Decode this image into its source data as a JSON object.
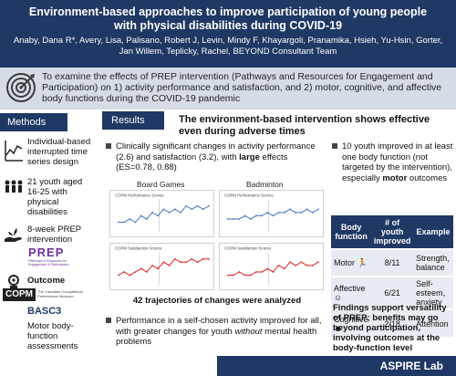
{
  "header": {
    "title": "Environment-based approaches to improve participation of young people with physical disabilities during COVID-19",
    "authors": "Anaby, Dana R*, Avery, Lisa, Palisano, Robert J, Levin, Mindy F, Khayargoli, Pranamika, Hsieh, Yu-Hsin, Gorter, Jan Willem, Teplicky, Rachel, BEYOND Consultant Team"
  },
  "objective": {
    "text": "To examine the effects of PREP intervention (Pathways and Resources for Engagement and Participation) on 1) activity performance and satisfaction, and 2) motor, cognitive, and affective body functions during the COVID-19 pandemic",
    "icon": "target-icon"
  },
  "methods": {
    "tab_label": "Methods",
    "items": [
      {
        "icon": "line-chart-icon",
        "text": "Individual-based interrupted time series design"
      },
      {
        "icon": "people-group-icon",
        "text": "21 youth aged 16-25 with physical disabilities"
      },
      {
        "icon": "hand-plant-icon",
        "text": "8-week PREP intervention"
      },
      {
        "icon": "trophy-icon",
        "text": "Outcome"
      }
    ],
    "prep_logo": {
      "word": "PREP",
      "tagline": "Pathways & Resources for Engagement & Participation"
    },
    "copm_logo": {
      "word": "COPM",
      "tagline": "The Canadian Occupational Performance Measure"
    },
    "basc_logo": {
      "word": "BASC3"
    },
    "motor_text": "Motor body-function assessments"
  },
  "results": {
    "tab_label": "Results",
    "headline": "The environment-based intervention shows effective even during adverse times",
    "bullet1_pre": "Clinically significant changes in activity performance (2.6) and satisfaction (3.2), with ",
    "bullet1_bold": "large",
    "bullet1_post": " effects (ES=0.78, 0.88)",
    "chart_titles": [
      "Board Games",
      "Badminton"
    ],
    "chart_small_titles": [
      "COPM Performance Scores",
      "COPM Performance Scores",
      "COPM Satisfaction Scores",
      "COPM Satisfaction Scores"
    ],
    "trajectories_note": "42 trajectories of changes were analyzed",
    "bullet2_pre": "Performance in a self-chosen activity improved for all, with greater changes for youth ",
    "bullet2_italic": "without",
    "bullet2_post": " mental health problems",
    "bullet3_pre": "10 youth improved in at least one body function (not targeted by the intervention), especially ",
    "bullet3_bold": "motor",
    "bullet3_post": " outcomes"
  },
  "chart_data": [
    {
      "type": "line",
      "title": "COPM Performance Scores",
      "series": [
        {
          "values": [
            3,
            3,
            4,
            3,
            5,
            4,
            6,
            5,
            7,
            6,
            7,
            6,
            8,
            7,
            8,
            7,
            8
          ]
        }
      ],
      "ylim": [
        0,
        10
      ],
      "color": "#4472c4"
    },
    {
      "type": "line",
      "title": "COPM Performance Scores",
      "series": [
        {
          "values": [
            4,
            4,
            4,
            5,
            4,
            5,
            5,
            6,
            5,
            6,
            6,
            7,
            6,
            6,
            7,
            6,
            7
          ]
        }
      ],
      "ylim": [
        0,
        10
      ],
      "color": "#4472c4"
    },
    {
      "type": "line",
      "title": "COPM Satisfaction Scores",
      "series": [
        {
          "values": [
            3,
            4,
            3,
            4,
            5,
            4,
            6,
            5,
            7,
            6,
            8,
            7,
            7,
            8,
            7,
            8,
            8
          ]
        }
      ],
      "ylim": [
        0,
        10
      ],
      "color": "#e02020"
    },
    {
      "type": "line",
      "title": "COPM Satisfaction Scores",
      "series": [
        {
          "values": [
            3,
            3,
            4,
            3,
            3,
            4,
            4,
            5,
            4,
            6,
            5,
            7,
            6,
            7,
            6,
            6,
            7
          ]
        }
      ],
      "ylim": [
        0,
        10
      ],
      "color": "#e02020"
    }
  ],
  "body_function_table": {
    "headers": [
      "Body function",
      "# of youth improved",
      "Example"
    ],
    "rows": [
      {
        "name": "Motor",
        "icon": "running-person-icon",
        "count": "8/11",
        "example": "Strength, balance"
      },
      {
        "name": "Affective",
        "icon": "smiley-face-icon",
        "count": "6/21",
        "example": "Self-esteem, anxiety"
      },
      {
        "name": "Cognitive",
        "icon": "brain-head-icon",
        "count": "2/18",
        "example": "Attention"
      }
    ]
  },
  "findings": "Findings support versatility of PREP; benefits may go beyond participation, involving outcomes at the body-function level",
  "footer": {
    "lab": "ASPIRE Lab"
  },
  "colors": {
    "navy": "#1f3864",
    "light_band": "#d6dce5",
    "blue_line": "#4472c4",
    "red_line": "#e02020"
  }
}
